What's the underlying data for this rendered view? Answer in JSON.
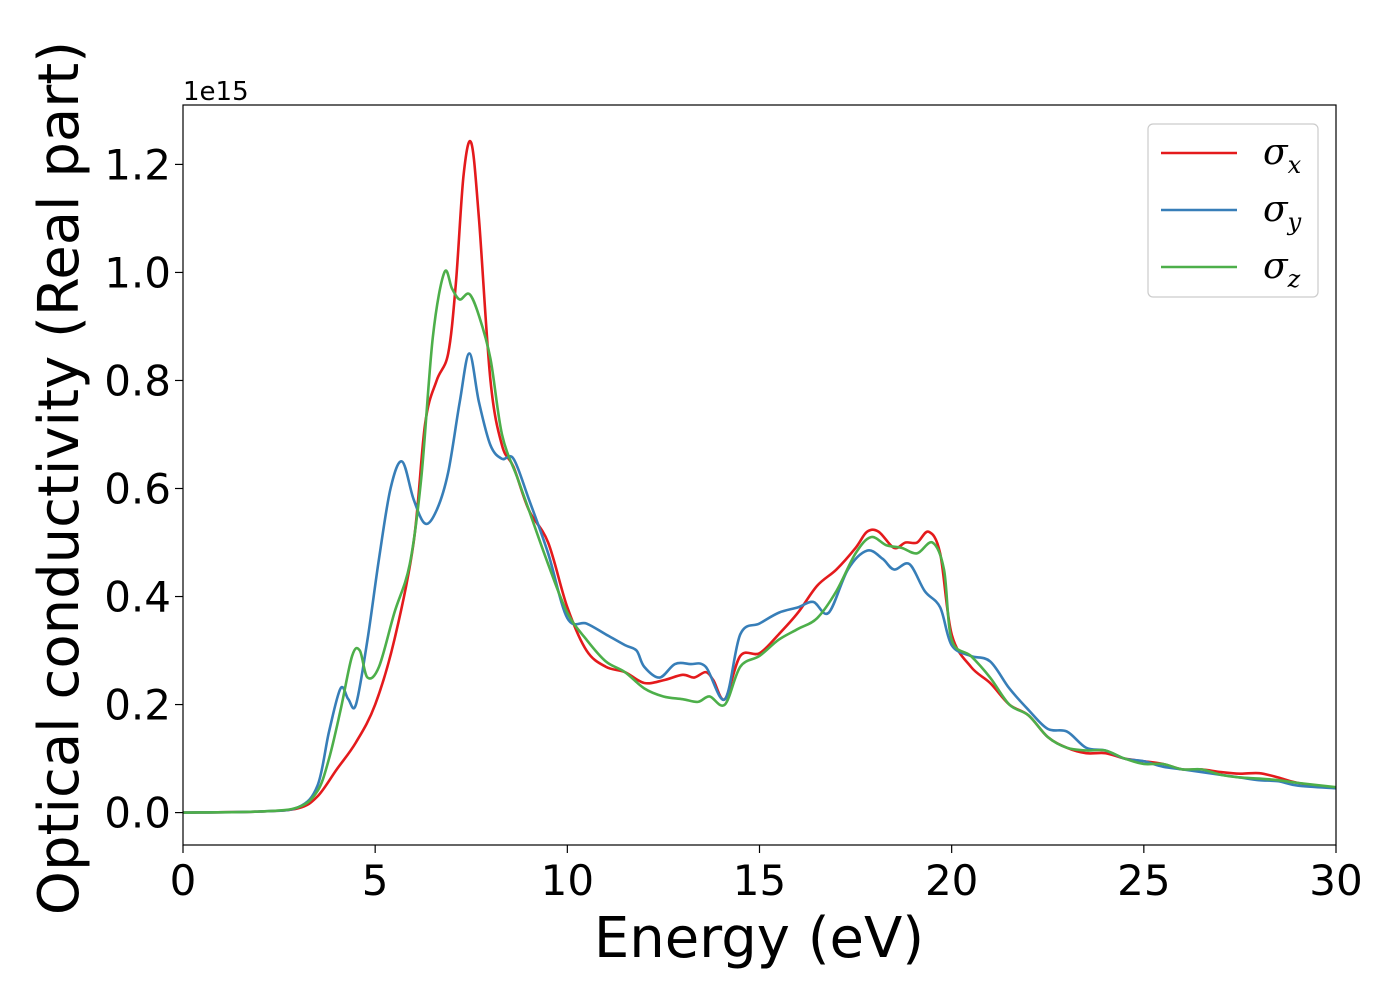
{
  "chart_data": {
    "type": "line",
    "xlabel": "Energy (eV)",
    "ylabel": "Optical conductivity (Real part)",
    "y_offset_text": "1e15",
    "xlim": [
      0,
      30
    ],
    "ylim": [
      -0.06,
      1.31
    ],
    "xticks": [
      0,
      5,
      10,
      15,
      20,
      25,
      30
    ],
    "xtick_labels": [
      "0",
      "5",
      "10",
      "15",
      "20",
      "25",
      "30"
    ],
    "yticks": [
      0.0,
      0.2,
      0.4,
      0.6,
      0.8,
      1.0,
      1.2
    ],
    "ytick_labels": [
      "0.0",
      "0.2",
      "0.4",
      "0.6",
      "0.8",
      "1.0",
      "1.2"
    ],
    "grid": false,
    "legend_position": "top-right",
    "series": [
      {
        "name": "σx",
        "legend_main": "σ",
        "legend_sub": "x",
        "color": "#e41a1c",
        "points": [
          [
            0,
            0
          ],
          [
            2,
            0.002
          ],
          [
            3,
            0.008
          ],
          [
            3.5,
            0.03
          ],
          [
            4,
            0.08
          ],
          [
            4.5,
            0.13
          ],
          [
            5,
            0.2
          ],
          [
            5.5,
            0.32
          ],
          [
            6,
            0.5
          ],
          [
            6.3,
            0.72
          ],
          [
            6.6,
            0.8
          ],
          [
            6.9,
            0.85
          ],
          [
            7.1,
            0.98
          ],
          [
            7.3,
            1.18
          ],
          [
            7.5,
            1.24
          ],
          [
            7.7,
            1.1
          ],
          [
            8,
            0.8
          ],
          [
            8.3,
            0.68
          ],
          [
            8.6,
            0.64
          ],
          [
            9,
            0.56
          ],
          [
            9.5,
            0.5
          ],
          [
            10,
            0.38
          ],
          [
            10.5,
            0.3
          ],
          [
            11,
            0.27
          ],
          [
            11.5,
            0.26
          ],
          [
            12,
            0.24
          ],
          [
            12.5,
            0.245
          ],
          [
            13,
            0.255
          ],
          [
            13.3,
            0.25
          ],
          [
            13.6,
            0.26
          ],
          [
            13.8,
            0.245
          ],
          [
            14.1,
            0.21
          ],
          [
            14.5,
            0.29
          ],
          [
            15,
            0.295
          ],
          [
            15.5,
            0.33
          ],
          [
            16,
            0.37
          ],
          [
            16.5,
            0.42
          ],
          [
            17,
            0.45
          ],
          [
            17.5,
            0.49
          ],
          [
            17.8,
            0.52
          ],
          [
            18.1,
            0.52
          ],
          [
            18.5,
            0.49
          ],
          [
            18.8,
            0.5
          ],
          [
            19.1,
            0.5
          ],
          [
            19.4,
            0.52
          ],
          [
            19.7,
            0.48
          ],
          [
            20,
            0.33
          ],
          [
            20.5,
            0.27
          ],
          [
            21,
            0.24
          ],
          [
            21.5,
            0.2
          ],
          [
            22,
            0.18
          ],
          [
            22.5,
            0.14
          ],
          [
            23,
            0.12
          ],
          [
            23.5,
            0.11
          ],
          [
            24,
            0.11
          ],
          [
            24.5,
            0.1
          ],
          [
            25,
            0.095
          ],
          [
            25.5,
            0.09
          ],
          [
            26,
            0.08
          ],
          [
            26.5,
            0.08
          ],
          [
            27,
            0.075
          ],
          [
            27.5,
            0.072
          ],
          [
            28,
            0.073
          ],
          [
            28.5,
            0.065
          ],
          [
            29,
            0.055
          ],
          [
            30,
            0.045
          ]
        ]
      },
      {
        "name": "σy",
        "legend_main": "σ",
        "legend_sub": "y",
        "color": "#377eb8",
        "points": [
          [
            0,
            0
          ],
          [
            2,
            0.002
          ],
          [
            3,
            0.01
          ],
          [
            3.5,
            0.05
          ],
          [
            3.8,
            0.15
          ],
          [
            4.1,
            0.23
          ],
          [
            4.3,
            0.21
          ],
          [
            4.5,
            0.2
          ],
          [
            4.8,
            0.32
          ],
          [
            5.1,
            0.47
          ],
          [
            5.4,
            0.6
          ],
          [
            5.7,
            0.65
          ],
          [
            6,
            0.58
          ],
          [
            6.3,
            0.535
          ],
          [
            6.6,
            0.56
          ],
          [
            6.9,
            0.63
          ],
          [
            7.2,
            0.76
          ],
          [
            7.45,
            0.85
          ],
          [
            7.7,
            0.76
          ],
          [
            8,
            0.68
          ],
          [
            8.3,
            0.655
          ],
          [
            8.6,
            0.655
          ],
          [
            9,
            0.58
          ],
          [
            9.5,
            0.48
          ],
          [
            10,
            0.36
          ],
          [
            10.5,
            0.35
          ],
          [
            11,
            0.33
          ],
          [
            11.5,
            0.31
          ],
          [
            11.8,
            0.3
          ],
          [
            12,
            0.27
          ],
          [
            12.4,
            0.25
          ],
          [
            12.8,
            0.275
          ],
          [
            13.2,
            0.275
          ],
          [
            13.6,
            0.27
          ],
          [
            14.1,
            0.21
          ],
          [
            14.5,
            0.33
          ],
          [
            15,
            0.35
          ],
          [
            15.5,
            0.37
          ],
          [
            16,
            0.38
          ],
          [
            16.4,
            0.39
          ],
          [
            16.8,
            0.37
          ],
          [
            17.3,
            0.45
          ],
          [
            17.8,
            0.485
          ],
          [
            18.2,
            0.47
          ],
          [
            18.5,
            0.45
          ],
          [
            18.9,
            0.46
          ],
          [
            19.3,
            0.41
          ],
          [
            19.7,
            0.38
          ],
          [
            20,
            0.31
          ],
          [
            20.5,
            0.29
          ],
          [
            21,
            0.28
          ],
          [
            21.5,
            0.23
          ],
          [
            22,
            0.19
          ],
          [
            22.5,
            0.155
          ],
          [
            23,
            0.15
          ],
          [
            23.5,
            0.12
          ],
          [
            24,
            0.115
          ],
          [
            24.5,
            0.1
          ],
          [
            25,
            0.095
          ],
          [
            25.5,
            0.085
          ],
          [
            26,
            0.08
          ],
          [
            26.5,
            0.075
          ],
          [
            27,
            0.07
          ],
          [
            27.5,
            0.065
          ],
          [
            28,
            0.06
          ],
          [
            28.5,
            0.058
          ],
          [
            29,
            0.05
          ],
          [
            30,
            0.045
          ]
        ]
      },
      {
        "name": "σz",
        "legend_main": "σ",
        "legend_sub": "z",
        "color": "#4daf4a",
        "points": [
          [
            0,
            0
          ],
          [
            2,
            0.002
          ],
          [
            3,
            0.01
          ],
          [
            3.5,
            0.04
          ],
          [
            3.8,
            0.1
          ],
          [
            4.1,
            0.19
          ],
          [
            4.4,
            0.29
          ],
          [
            4.6,
            0.3
          ],
          [
            4.8,
            0.25
          ],
          [
            5.1,
            0.27
          ],
          [
            5.5,
            0.37
          ],
          [
            5.9,
            0.46
          ],
          [
            6.2,
            0.62
          ],
          [
            6.5,
            0.88
          ],
          [
            6.8,
            1.0
          ],
          [
            7,
            0.97
          ],
          [
            7.2,
            0.95
          ],
          [
            7.45,
            0.96
          ],
          [
            7.7,
            0.92
          ],
          [
            8,
            0.84
          ],
          [
            8.3,
            0.7
          ],
          [
            8.7,
            0.62
          ],
          [
            9,
            0.56
          ],
          [
            9.5,
            0.46
          ],
          [
            10,
            0.37
          ],
          [
            10.5,
            0.32
          ],
          [
            11,
            0.28
          ],
          [
            11.5,
            0.26
          ],
          [
            12,
            0.23
          ],
          [
            12.5,
            0.215
          ],
          [
            13,
            0.21
          ],
          [
            13.4,
            0.205
          ],
          [
            13.7,
            0.215
          ],
          [
            14.1,
            0.2
          ],
          [
            14.5,
            0.27
          ],
          [
            15,
            0.29
          ],
          [
            15.5,
            0.32
          ],
          [
            16,
            0.34
          ],
          [
            16.5,
            0.36
          ],
          [
            17,
            0.41
          ],
          [
            17.5,
            0.48
          ],
          [
            17.9,
            0.51
          ],
          [
            18.3,
            0.495
          ],
          [
            18.7,
            0.49
          ],
          [
            19.1,
            0.48
          ],
          [
            19.5,
            0.5
          ],
          [
            19.8,
            0.45
          ],
          [
            20,
            0.32
          ],
          [
            20.5,
            0.29
          ],
          [
            21,
            0.25
          ],
          [
            21.5,
            0.2
          ],
          [
            22,
            0.18
          ],
          [
            22.5,
            0.14
          ],
          [
            23,
            0.12
          ],
          [
            23.5,
            0.115
          ],
          [
            24,
            0.115
          ],
          [
            24.5,
            0.1
          ],
          [
            25,
            0.09
          ],
          [
            25.5,
            0.09
          ],
          [
            26,
            0.08
          ],
          [
            26.5,
            0.08
          ],
          [
            27,
            0.07
          ],
          [
            27.5,
            0.065
          ],
          [
            28,
            0.063
          ],
          [
            28.5,
            0.06
          ],
          [
            29,
            0.055
          ],
          [
            30,
            0.047
          ]
        ]
      }
    ]
  }
}
